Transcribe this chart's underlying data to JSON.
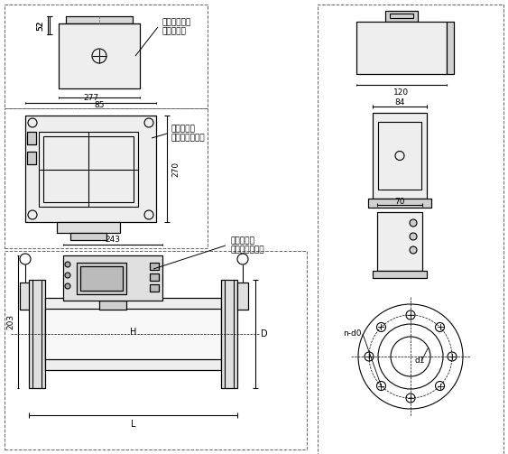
{
  "bg_color": "#ffffff",
  "line_color": "#000000",
  "dash_color": "#666666",
  "annotations": {
    "label1": "分离型传感器\n安装接线盒",
    "label2": "防爆一体型\n安装隔爆转换器",
    "label3": "常规一体型\n安装普通转换器",
    "dim_52": "52",
    "dim_85": "85",
    "dim_277": "277",
    "dim_270": "270",
    "dim_243": "243",
    "dim_203": "203",
    "dim_120": "120",
    "dim_84": "84",
    "dim_70": "70",
    "dim_H": "H",
    "dim_D": "D",
    "dim_L": "L",
    "dim_nd0": "n-d0",
    "dim_d1": "d1"
  }
}
